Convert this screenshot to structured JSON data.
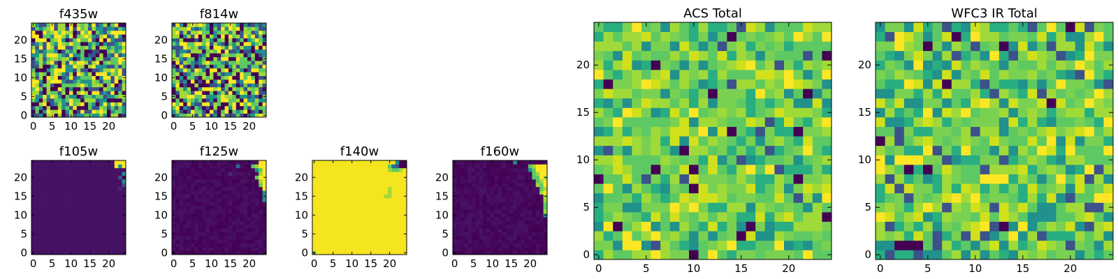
{
  "chart_data": [
    {
      "id": "f435w",
      "type": "heatmap",
      "title": "f435w",
      "xlim": [
        0,
        24
      ],
      "ylim": [
        0,
        24
      ],
      "x_ticks": [
        0,
        5,
        10,
        15,
        20
      ],
      "y_ticks": [
        0,
        5,
        10,
        15,
        20
      ],
      "grid": false,
      "pattern": "noise",
      "palette": [
        "#440154",
        "#3b528b",
        "#21918c",
        "#5ec962",
        "#a0da39",
        "#fde725"
      ],
      "seed": 11,
      "colorbar": false
    },
    {
      "id": "f814w",
      "type": "heatmap",
      "title": "f814w",
      "xlim": [
        0,
        24
      ],
      "ylim": [
        0,
        24
      ],
      "x_ticks": [
        0,
        5,
        10,
        15,
        20
      ],
      "y_ticks": [
        0,
        5,
        10,
        15,
        20
      ],
      "grid": false,
      "pattern": "noise",
      "palette": [
        "#440154",
        "#3b528b",
        "#21918c",
        "#5ec962",
        "#a0da39",
        "#fde725"
      ],
      "seed": 23,
      "colorbar": false
    },
    {
      "id": "f105w",
      "type": "heatmap",
      "title": "f105w",
      "xlim": [
        0,
        24
      ],
      "ylim": [
        0,
        24
      ],
      "x_ticks": [
        0,
        5,
        10,
        15,
        20
      ],
      "y_ticks": [
        0,
        5,
        10,
        15,
        20
      ],
      "grid": false,
      "pattern": "uniform",
      "background": "#471164",
      "highlights": [
        {
          "x": 22,
          "y": 24,
          "color": "#fde725"
        },
        {
          "x": 23,
          "y": 24,
          "color": "#fde725"
        },
        {
          "x": 24,
          "y": 24,
          "color": "#fde725"
        },
        {
          "x": 22,
          "y": 23,
          "color": "#fde725"
        },
        {
          "x": 23,
          "y": 23,
          "color": "#21918c"
        },
        {
          "x": 24,
          "y": 23,
          "color": "#fde725"
        },
        {
          "x": 24,
          "y": 21,
          "color": "#21918c"
        },
        {
          "x": 23,
          "y": 20,
          "color": "#3b528b"
        },
        {
          "x": 24,
          "y": 19,
          "color": "#21918c"
        },
        {
          "x": 24,
          "y": 18,
          "color": "#3b528b"
        },
        {
          "x": 23,
          "y": 17,
          "color": "#482878"
        }
      ],
      "colorbar": false
    },
    {
      "id": "f125w",
      "type": "heatmap",
      "title": "f125w",
      "xlim": [
        0,
        24
      ],
      "ylim": [
        0,
        24
      ],
      "x_ticks": [
        0,
        5,
        10,
        15,
        20
      ],
      "y_ticks": [
        0,
        5,
        10,
        15,
        20
      ],
      "grid": false,
      "pattern": "dark-noise",
      "palette": [
        "#440154",
        "#450559",
        "#46075a",
        "#470d60",
        "#471164"
      ],
      "seed": 37,
      "highlights": [
        {
          "x": 23,
          "y": 24,
          "color": "#fde725"
        },
        {
          "x": 24,
          "y": 24,
          "color": "#fde725"
        },
        {
          "x": 21,
          "y": 23,
          "color": "#5ec962"
        },
        {
          "x": 22,
          "y": 23,
          "color": "#a0da39"
        },
        {
          "x": 23,
          "y": 23,
          "color": "#fde725"
        },
        {
          "x": 24,
          "y": 23,
          "color": "#fde725"
        },
        {
          "x": 22,
          "y": 22,
          "color": "#21918c"
        },
        {
          "x": 23,
          "y": 22,
          "color": "#5ec962"
        },
        {
          "x": 24,
          "y": 22,
          "color": "#fde725"
        },
        {
          "x": 23,
          "y": 21,
          "color": "#a0da39"
        },
        {
          "x": 24,
          "y": 21,
          "color": "#fde725"
        },
        {
          "x": 22,
          "y": 20,
          "color": "#5ec962"
        },
        {
          "x": 23,
          "y": 20,
          "color": "#fde725"
        },
        {
          "x": 24,
          "y": 20,
          "color": "#fde725"
        },
        {
          "x": 23,
          "y": 19,
          "color": "#a0da39"
        },
        {
          "x": 24,
          "y": 19,
          "color": "#fde725"
        },
        {
          "x": 23,
          "y": 18,
          "color": "#5ec962"
        },
        {
          "x": 24,
          "y": 18,
          "color": "#fde725"
        },
        {
          "x": 24,
          "y": 17,
          "color": "#fde725"
        },
        {
          "x": 24,
          "y": 16,
          "color": "#21918c"
        },
        {
          "x": 24,
          "y": 15,
          "color": "#21918c"
        },
        {
          "x": 24,
          "y": 14,
          "color": "#21918c"
        },
        {
          "x": 17,
          "y": 23,
          "color": "#31688e"
        },
        {
          "x": 15,
          "y": 21,
          "color": "#482878"
        }
      ],
      "colorbar": false
    },
    {
      "id": "f140w",
      "type": "heatmap",
      "title": "f140w",
      "xlim": [
        0,
        24
      ],
      "ylim": [
        0,
        24
      ],
      "x_ticks": [
        0,
        5,
        10,
        15,
        20
      ],
      "y_ticks": [
        0,
        5,
        10,
        15,
        20
      ],
      "grid": false,
      "pattern": "uniform",
      "background": "#f5e51f",
      "highlights": [
        {
          "x": 22,
          "y": 24,
          "color": "#21918c"
        },
        {
          "x": 23,
          "y": 24,
          "color": "#440154"
        },
        {
          "x": 24,
          "y": 24,
          "color": "#440154"
        },
        {
          "x": 20,
          "y": 23,
          "color": "#5ec962"
        },
        {
          "x": 21,
          "y": 23,
          "color": "#31688e"
        },
        {
          "x": 22,
          "y": 23,
          "color": "#3b528b"
        },
        {
          "x": 23,
          "y": 23,
          "color": "#440154"
        },
        {
          "x": 24,
          "y": 23,
          "color": "#440154"
        },
        {
          "x": 20,
          "y": 22,
          "color": "#a0da39"
        },
        {
          "x": 21,
          "y": 22,
          "color": "#5ec962"
        },
        {
          "x": 22,
          "y": 22,
          "color": "#5ec962"
        },
        {
          "x": 23,
          "y": 22,
          "color": "#a0da39"
        },
        {
          "x": 20,
          "y": 17,
          "color": "#a0da39"
        },
        {
          "x": 20,
          "y": 16,
          "color": "#a0da39"
        },
        {
          "x": 19,
          "y": 15,
          "color": "#a0da39"
        },
        {
          "x": 20,
          "y": 15,
          "color": "#a0da39"
        },
        {
          "x": 0,
          "y": 0,
          "color": "#5ec962"
        }
      ],
      "colorbar": false
    },
    {
      "id": "f160w",
      "type": "heatmap",
      "title": "f160w",
      "xlim": [
        0,
        24
      ],
      "ylim": [
        0,
        24
      ],
      "x_ticks": [
        0,
        5,
        10,
        15,
        20
      ],
      "y_ticks": [
        0,
        5,
        10,
        15,
        20
      ],
      "grid": false,
      "pattern": "dark-noise",
      "palette": [
        "#440154",
        "#450559",
        "#46075a",
        "#470d60",
        "#471164"
      ],
      "seed": 53,
      "highlights": [
        {
          "x": 16,
          "y": 24,
          "color": "#21918c"
        },
        {
          "x": 20,
          "y": 23,
          "color": "#5ec962"
        },
        {
          "x": 21,
          "y": 23,
          "color": "#a0da39"
        },
        {
          "x": 22,
          "y": 23,
          "color": "#fde725"
        },
        {
          "x": 23,
          "y": 23,
          "color": "#fde725"
        },
        {
          "x": 24,
          "y": 23,
          "color": "#fde725"
        },
        {
          "x": 20,
          "y": 22,
          "color": "#21918c"
        },
        {
          "x": 21,
          "y": 22,
          "color": "#5ec962"
        },
        {
          "x": 22,
          "y": 22,
          "color": "#fde725"
        },
        {
          "x": 23,
          "y": 22,
          "color": "#fde725"
        },
        {
          "x": 24,
          "y": 22,
          "color": "#fde725"
        },
        {
          "x": 21,
          "y": 21,
          "color": "#5ec962"
        },
        {
          "x": 22,
          "y": 21,
          "color": "#a0da39"
        },
        {
          "x": 23,
          "y": 21,
          "color": "#fde725"
        },
        {
          "x": 24,
          "y": 21,
          "color": "#fde725"
        },
        {
          "x": 21,
          "y": 20,
          "color": "#5ec962"
        },
        {
          "x": 22,
          "y": 20,
          "color": "#5ec962"
        },
        {
          "x": 23,
          "y": 20,
          "color": "#fde725"
        },
        {
          "x": 24,
          "y": 20,
          "color": "#a0da39"
        },
        {
          "x": 22,
          "y": 19,
          "color": "#5ec962"
        },
        {
          "x": 23,
          "y": 19,
          "color": "#a0da39"
        },
        {
          "x": 24,
          "y": 19,
          "color": "#fde725"
        },
        {
          "x": 22,
          "y": 18,
          "color": "#a0da39"
        },
        {
          "x": 23,
          "y": 18,
          "color": "#5ec962"
        },
        {
          "x": 24,
          "y": 18,
          "color": "#fde725"
        },
        {
          "x": 23,
          "y": 17,
          "color": "#5ec962"
        },
        {
          "x": 24,
          "y": 17,
          "color": "#a0da39"
        },
        {
          "x": 23,
          "y": 16,
          "color": "#a0da39"
        },
        {
          "x": 24,
          "y": 16,
          "color": "#fde725"
        },
        {
          "x": 24,
          "y": 15,
          "color": "#a0da39"
        },
        {
          "x": 24,
          "y": 14,
          "color": "#a0da39"
        },
        {
          "x": 24,
          "y": 13,
          "color": "#5ec962"
        },
        {
          "x": 24,
          "y": 12,
          "color": "#5ec962"
        },
        {
          "x": 24,
          "y": 11,
          "color": "#a0da39"
        },
        {
          "x": 24,
          "y": 10,
          "color": "#21918c"
        }
      ],
      "colorbar": false
    },
    {
      "id": "acs-total",
      "type": "heatmap",
      "title": "ACS Total",
      "xlim": [
        0,
        24
      ],
      "ylim": [
        0,
        24
      ],
      "x_ticks": [
        0,
        5,
        10,
        15,
        20
      ],
      "y_ticks": [
        0,
        5,
        10,
        15,
        20
      ],
      "grid": false,
      "pattern": "noise",
      "palette": [
        "#440154",
        "#3b528b",
        "#21918c",
        "#28ae80",
        "#5ec962",
        "#7ad151",
        "#a0da39",
        "#d0e11c",
        "#fde725"
      ],
      "weights": [
        1,
        1,
        3,
        5,
        8,
        6,
        6,
        3,
        2
      ],
      "seed": 71,
      "colorbar": false
    },
    {
      "id": "wfc3-ir-total",
      "type": "heatmap",
      "title": "WFC3 IR Total",
      "xlim": [
        0,
        24
      ],
      "ylim": [
        0,
        24
      ],
      "x_ticks": [
        0,
        5,
        10,
        15,
        20
      ],
      "y_ticks": [
        0,
        5,
        10,
        15,
        20
      ],
      "grid": false,
      "pattern": "noise",
      "palette": [
        "#440154",
        "#3b528b",
        "#21918c",
        "#28ae80",
        "#5ec962",
        "#7ad151",
        "#a0da39",
        "#d0e11c",
        "#fde725"
      ],
      "weights": [
        1,
        2,
        4,
        5,
        8,
        6,
        6,
        3,
        2
      ],
      "seed": 97,
      "colorbar": false
    }
  ]
}
